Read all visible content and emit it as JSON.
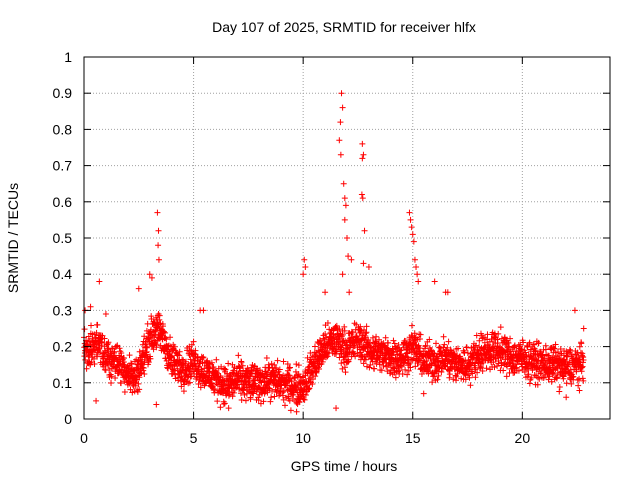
{
  "chart_data": {
    "type": "scatter",
    "title": "Day 107 of 2025, SRMTID for receiver hlfx",
    "xlabel": "GPS time / hours",
    "ylabel": "SRMTID / TECUs",
    "xlim": [
      0,
      24
    ],
    "ylim": [
      0,
      1
    ],
    "xticks": [
      0,
      5,
      10,
      15,
      20
    ],
    "xtick_labels": [
      "0",
      "5",
      "10",
      "15",
      "20"
    ],
    "yticks": [
      0,
      0.1,
      0.2,
      0.3,
      0.4,
      0.5,
      0.6,
      0.7,
      0.8,
      0.9,
      1
    ],
    "ytick_labels": [
      "0",
      "0.1",
      "0.2",
      "0.3",
      "0.4",
      "0.5",
      "0.6",
      "0.7",
      "0.8",
      "0.9",
      "1"
    ],
    "grid": true,
    "marker": "+",
    "series_color": "#ff0000",
    "profile_x": [
      0,
      0.3,
      0.6,
      1.0,
      1.5,
      2.0,
      2.3,
      2.6,
      3.0,
      3.3,
      3.6,
      4.0,
      4.5,
      5.0,
      5.5,
      6.0,
      6.5,
      7.0,
      7.5,
      8.0,
      8.5,
      9.0,
      9.5,
      10.0,
      10.5,
      11.0,
      11.5,
      12.0,
      12.5,
      13.0,
      13.5,
      14.0,
      14.5,
      15.0,
      15.5,
      16.0,
      16.5,
      17.0,
      17.5,
      18.0,
      18.5,
      19.0,
      19.5,
      20.0,
      20.5,
      21.0,
      21.5,
      22.0,
      22.5,
      22.8
    ],
    "profile_y": [
      0.19,
      0.19,
      0.21,
      0.17,
      0.16,
      0.13,
      0.11,
      0.15,
      0.22,
      0.25,
      0.22,
      0.16,
      0.14,
      0.16,
      0.13,
      0.11,
      0.09,
      0.11,
      0.1,
      0.1,
      0.11,
      0.1,
      0.09,
      0.09,
      0.15,
      0.2,
      0.22,
      0.19,
      0.22,
      0.19,
      0.18,
      0.17,
      0.17,
      0.2,
      0.16,
      0.16,
      0.17,
      0.15,
      0.15,
      0.18,
      0.19,
      0.19,
      0.17,
      0.17,
      0.16,
      0.15,
      0.15,
      0.14,
      0.15,
      0.15
    ],
    "sample_count": 2700,
    "outliers": [
      {
        "x": 3.35,
        "y": 0.57
      },
      {
        "x": 3.4,
        "y": 0.52
      },
      {
        "x": 3.38,
        "y": 0.48
      },
      {
        "x": 3.42,
        "y": 0.44
      },
      {
        "x": 3.0,
        "y": 0.4
      },
      {
        "x": 3.1,
        "y": 0.39
      },
      {
        "x": 3.3,
        "y": 0.04
      },
      {
        "x": 0.55,
        "y": 0.05
      },
      {
        "x": 0.7,
        "y": 0.38
      },
      {
        "x": 2.5,
        "y": 0.36
      },
      {
        "x": 10.05,
        "y": 0.44
      },
      {
        "x": 10.1,
        "y": 0.42
      },
      {
        "x": 10.0,
        "y": 0.4
      },
      {
        "x": 11.75,
        "y": 0.9
      },
      {
        "x": 11.8,
        "y": 0.86
      },
      {
        "x": 11.7,
        "y": 0.82
      },
      {
        "x": 11.65,
        "y": 0.77
      },
      {
        "x": 11.72,
        "y": 0.73
      },
      {
        "x": 11.85,
        "y": 0.65
      },
      {
        "x": 11.9,
        "y": 0.61
      },
      {
        "x": 11.95,
        "y": 0.59
      },
      {
        "x": 11.9,
        "y": 0.55
      },
      {
        "x": 12.0,
        "y": 0.5
      },
      {
        "x": 12.05,
        "y": 0.45
      },
      {
        "x": 11.8,
        "y": 0.4
      },
      {
        "x": 12.7,
        "y": 0.76
      },
      {
        "x": 12.75,
        "y": 0.73
      },
      {
        "x": 12.7,
        "y": 0.72
      },
      {
        "x": 12.68,
        "y": 0.62
      },
      {
        "x": 12.72,
        "y": 0.61
      },
      {
        "x": 12.8,
        "y": 0.52
      },
      {
        "x": 12.75,
        "y": 0.43
      },
      {
        "x": 12.2,
        "y": 0.44
      },
      {
        "x": 13.0,
        "y": 0.42
      },
      {
        "x": 14.85,
        "y": 0.57
      },
      {
        "x": 14.9,
        "y": 0.55
      },
      {
        "x": 14.95,
        "y": 0.53
      },
      {
        "x": 15.0,
        "y": 0.51
      },
      {
        "x": 15.05,
        "y": 0.49
      },
      {
        "x": 15.1,
        "y": 0.44
      },
      {
        "x": 15.15,
        "y": 0.42
      },
      {
        "x": 15.2,
        "y": 0.4
      },
      {
        "x": 15.25,
        "y": 0.38
      },
      {
        "x": 15.5,
        "y": 0.07
      },
      {
        "x": 16.0,
        "y": 0.38
      },
      {
        "x": 16.5,
        "y": 0.35
      },
      {
        "x": 16.6,
        "y": 0.35
      },
      {
        "x": 12.1,
        "y": 0.35
      },
      {
        "x": 11.0,
        "y": 0.35
      },
      {
        "x": 5.3,
        "y": 0.3
      },
      {
        "x": 5.45,
        "y": 0.3
      },
      {
        "x": 1.0,
        "y": 0.29
      },
      {
        "x": 0.3,
        "y": 0.31
      },
      {
        "x": 0.05,
        "y": 0.3
      },
      {
        "x": 22.4,
        "y": 0.3
      },
      {
        "x": 22.8,
        "y": 0.25
      },
      {
        "x": 9.7,
        "y": 0.02
      },
      {
        "x": 11.5,
        "y": 0.03
      },
      {
        "x": 22.0,
        "y": 0.06
      },
      {
        "x": 6.6,
        "y": 0.03
      }
    ]
  }
}
